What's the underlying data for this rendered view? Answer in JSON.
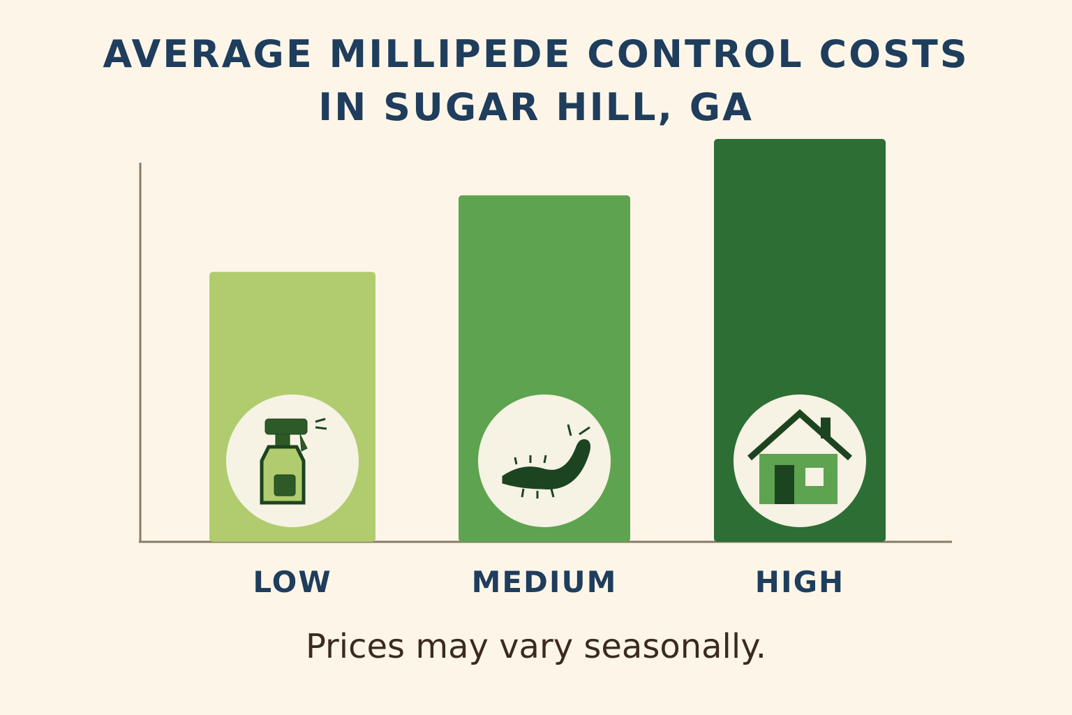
{
  "chart_data": {
    "type": "bar",
    "title": "AVERAGE MILLIPEDE CONTROL COSTS IN SUGAR HILL, GA",
    "categories": [
      "LOW",
      "MEDIUM",
      "HIGH"
    ],
    "values": [
      67,
      86,
      100
    ],
    "colors": [
      "#b0cc6e",
      "#5ea350",
      "#2d6e35"
    ],
    "ylim": [
      0,
      100
    ],
    "note": "Prices may vary seasonally."
  }
}
